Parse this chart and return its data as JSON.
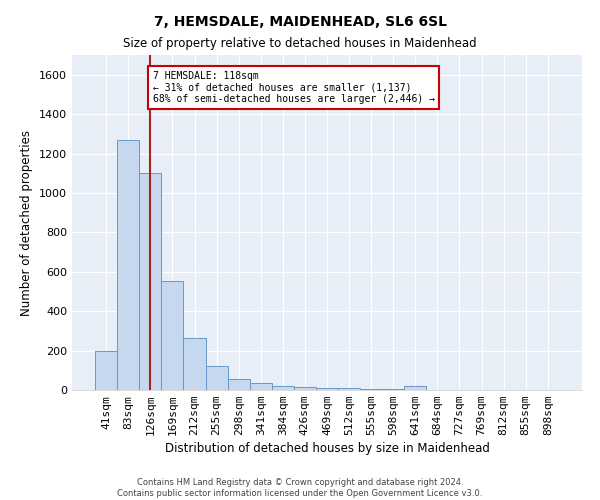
{
  "title": "7, HEMSDALE, MAIDENHEAD, SL6 6SL",
  "subtitle": "Size of property relative to detached houses in Maidenhead",
  "xlabel": "Distribution of detached houses by size in Maidenhead",
  "ylabel": "Number of detached properties",
  "bar_color": "#c5d8ed",
  "bar_edge_color": "#6699cc",
  "background_color": "#e8eef8",
  "grid_color": "#ffffff",
  "annotation_line_color": "#aa2222",
  "annotation_box_color": "#cc0000",
  "categories": [
    "41sqm",
    "83sqm",
    "126sqm",
    "169sqm",
    "212sqm",
    "255sqm",
    "298sqm",
    "341sqm",
    "384sqm",
    "426sqm",
    "469sqm",
    "512sqm",
    "555sqm",
    "598sqm",
    "641sqm",
    "684sqm",
    "727sqm",
    "769sqm",
    "812sqm",
    "855sqm",
    "898sqm"
  ],
  "values": [
    200,
    1270,
    1100,
    555,
    265,
    120,
    58,
    33,
    22,
    15,
    10,
    8,
    6,
    5,
    18,
    0,
    0,
    0,
    0,
    0,
    0
  ],
  "ylim": [
    0,
    1700
  ],
  "yticks": [
    0,
    200,
    400,
    600,
    800,
    1000,
    1200,
    1400,
    1600
  ],
  "property_line_x": 2.0,
  "annotation_text": "7 HEMSDALE: 118sqm\n← 31% of detached houses are smaller (1,137)\n68% of semi-detached houses are larger (2,446) →",
  "footer_line1": "Contains HM Land Registry data © Crown copyright and database right 2024.",
  "footer_line2": "Contains public sector information licensed under the Open Government Licence v3.0."
}
